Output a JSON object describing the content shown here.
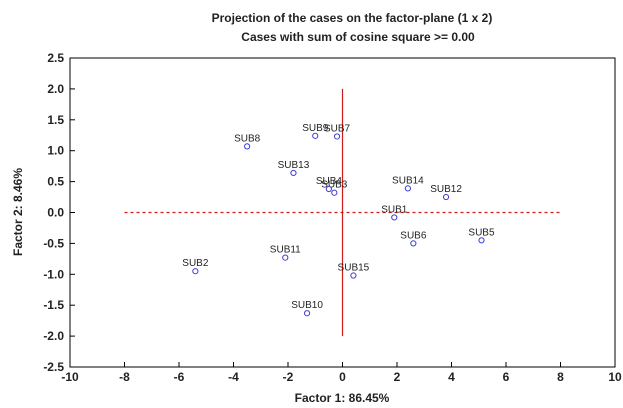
{
  "chart_data": {
    "type": "scatter",
    "title": "Projection of the cases on the factor-plane (1 x 2)",
    "subtitle": "Cases with sum of cosine square >= 0.00",
    "xlabel": "Factor 1: 86.45%",
    "ylabel": "Factor 2: 8.46%",
    "xlim": [
      -10,
      10
    ],
    "ylim": [
      -2.5,
      2.5
    ],
    "xticks": [
      "-10",
      "-8",
      "-6",
      "-4",
      "-2",
      "0",
      "2",
      "4",
      "6",
      "8",
      "10"
    ],
    "yticks": [
      "2.5",
      "2.0",
      "1.5",
      "1.0",
      "0.5",
      "0.0",
      "-0.5",
      "-1.0",
      "-1.5",
      "-2.0",
      "-2.5"
    ],
    "reference_lines": [
      {
        "orientation": "horizontal",
        "value": 0.0,
        "from": -8,
        "to": 8,
        "style": "dashed"
      },
      {
        "orientation": "vertical",
        "value": 0.0,
        "from": -2.0,
        "to": 2.0,
        "style": "solid"
      }
    ],
    "points": [
      {
        "label": "SUB1",
        "x": 1.9,
        "y": -0.08
      },
      {
        "label": "SUB2",
        "x": -5.4,
        "y": -0.95
      },
      {
        "label": "SUB3",
        "x": -0.3,
        "y": 0.32
      },
      {
        "label": "SUB4",
        "x": -0.5,
        "y": 0.38
      },
      {
        "label": "SUB5",
        "x": 5.1,
        "y": -0.45
      },
      {
        "label": "SUB6",
        "x": 2.6,
        "y": -0.5
      },
      {
        "label": "SUB7",
        "x": -0.2,
        "y": 1.23
      },
      {
        "label": "SUB8",
        "x": -3.5,
        "y": 1.07
      },
      {
        "label": "SUB9",
        "x": -1.0,
        "y": 1.24
      },
      {
        "label": "SUB10",
        "x": -1.3,
        "y": -1.63
      },
      {
        "label": "SUB11",
        "x": -2.1,
        "y": -0.73
      },
      {
        "label": "SUB12",
        "x": 3.8,
        "y": 0.25
      },
      {
        "label": "SUB13",
        "x": -1.8,
        "y": 0.64
      },
      {
        "label": "SUB14",
        "x": 2.4,
        "y": 0.39
      },
      {
        "label": "SUB15",
        "x": 0.4,
        "y": -1.02
      }
    ],
    "colors": {
      "point": "#3d3dd6",
      "reference_line": "#d11a1a",
      "axis": "#000000"
    }
  }
}
